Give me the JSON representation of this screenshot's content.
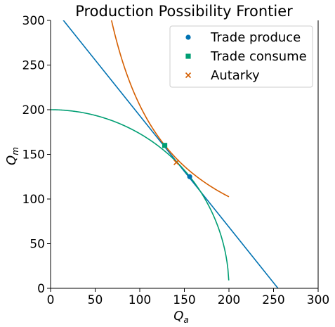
{
  "chart_data": {
    "type": "line",
    "title": "Production Possibility Frontier",
    "xlabel": "Q",
    "xlabel_sub": "a",
    "ylabel": "Q",
    "ylabel_sub": "m",
    "xlim": [
      0,
      300
    ],
    "ylim": [
      0,
      300
    ],
    "xticks": [
      0,
      50,
      100,
      150,
      200,
      250,
      300
    ],
    "yticks": [
      0,
      50,
      100,
      150,
      200,
      250,
      300
    ],
    "grid": false,
    "legend_position": "top-right",
    "ppf": {
      "color": "#009E73",
      "radius": 200,
      "x_from": 0,
      "x_to": 199.8
    },
    "trade_line": {
      "color": "#0072B2",
      "x1": 0,
      "y1": 318,
      "x2": 255,
      "y2": 0
    },
    "indifference_curve": {
      "color": "#D55E00",
      "k": 20500,
      "x_from": 68,
      "x_to": 200
    },
    "series": [
      {
        "name": "Trade produce",
        "marker": "circle",
        "color": "#0072B2",
        "x": 156,
        "y": 125
      },
      {
        "name": "Trade consume",
        "marker": "square",
        "color": "#009E73",
        "x": 128,
        "y": 160
      },
      {
        "name": "Autarky",
        "marker": "x",
        "color": "#D55E00",
        "x": 141,
        "y": 141
      }
    ]
  }
}
